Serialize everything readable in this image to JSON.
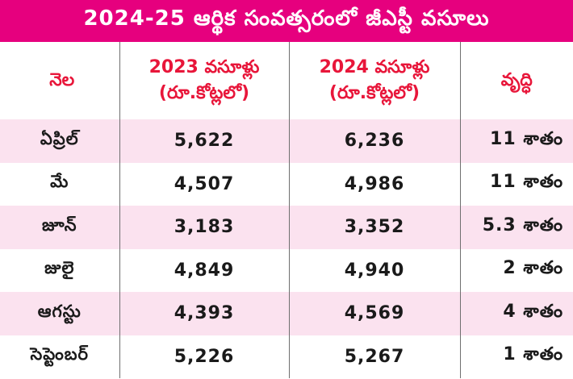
{
  "title": "2024-25 ఆర్థిక సంవత్సరంలో జీఎస్టీ వసూలు",
  "chart_data": {
    "type": "table",
    "columns": {
      "month": "నెల",
      "y2023_line1": "2023 వసూళ్లు",
      "y2023_line2": "(రూ.కోట్లలో)",
      "y2024_line1": "2024 వసూళ్లు",
      "y2024_line2": "(రూ.కోట్లలో)",
      "growth": "వృద్ధి"
    },
    "rows": [
      {
        "month": "ఏప్రిల్",
        "y2023": "5,622",
        "y2024": "6,236",
        "growth": "11 శాతం"
      },
      {
        "month": "మే",
        "y2023": "4,507",
        "y2024": "4,986",
        "growth": "11 శాతం"
      },
      {
        "month": "జూన్",
        "y2023": "3,183",
        "y2024": "3,352",
        "growth": "5.3 శాతం"
      },
      {
        "month": "జులై",
        "y2023": "4,849",
        "y2024": "4,940",
        "growth": "2 శాతం"
      },
      {
        "month": "ఆగస్టు",
        "y2023": "4,393",
        "y2024": "4,569",
        "growth": "4 శాతం"
      },
      {
        "month": "సెప్టెంబర్",
        "y2023": "5,226",
        "y2024": "5,267",
        "growth": "1 శాతం"
      }
    ]
  },
  "colors": {
    "title_bg": "#e6007e",
    "header_text": "#e8163a",
    "band_row": "#fbe2ef"
  }
}
